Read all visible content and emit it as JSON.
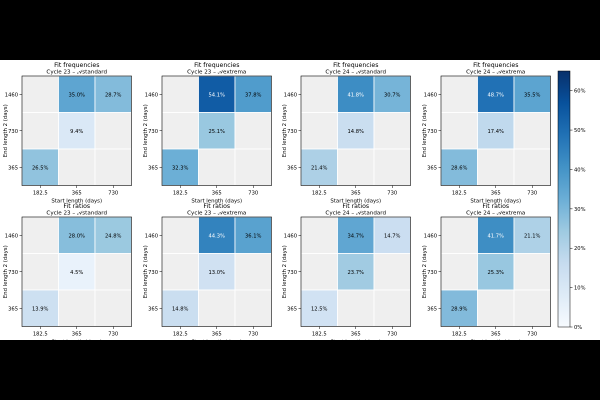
{
  "chart_data": {
    "type": "heatmap",
    "x_categories": [
      "182.5",
      "365",
      "730"
    ],
    "y_categories": [
      "1460",
      "730",
      "365"
    ],
    "xlabel": "Start length (days)",
    "ylabel": "End length 2 (days)",
    "empty_color": "#efefef",
    "colormap": [
      "#f7fbff",
      "#deebf7",
      "#c6dbef",
      "#9ecae1",
      "#6baed6",
      "#4292c6",
      "#2171b5",
      "#08519c",
      "#08306b"
    ],
    "colorbar": {
      "min": 0,
      "max": 65,
      "ticks": [
        "0%",
        "10%",
        "20%",
        "30%",
        "40%",
        "50%",
        "60%"
      ]
    },
    "panels": [
      {
        "title": "Fit frequencies",
        "subtitle": "Cycle 23 – 𝒜standard",
        "cells": [
          [
            null,
            35.0,
            28.7
          ],
          [
            null,
            9.4,
            null
          ],
          [
            26.5,
            null,
            null
          ]
        ]
      },
      {
        "title": "Fit frequencies",
        "subtitle": "Cycle 23 – 𝒜extrema",
        "cells": [
          [
            null,
            54.1,
            37.8
          ],
          [
            null,
            25.1,
            null
          ],
          [
            32.3,
            null,
            null
          ]
        ]
      },
      {
        "title": "Fit frequencies",
        "subtitle": "Cycle 24 – 𝒜standard",
        "cells": [
          [
            null,
            41.8,
            30.7
          ],
          [
            null,
            14.8,
            null
          ],
          [
            21.4,
            null,
            null
          ]
        ]
      },
      {
        "title": "Fit frequencies",
        "subtitle": "Cycle 24 – 𝒜extrema",
        "cells": [
          [
            null,
            48.7,
            35.5
          ],
          [
            null,
            17.4,
            null
          ],
          [
            28.6,
            null,
            null
          ]
        ]
      },
      {
        "title": "Fit ratios",
        "subtitle": "Cycle 23 – 𝒜standard",
        "cells": [
          [
            null,
            28.0,
            24.8
          ],
          [
            null,
            4.5,
            null
          ],
          [
            13.9,
            null,
            null
          ]
        ]
      },
      {
        "title": "Fit ratios",
        "subtitle": "Cycle 23 – 𝒜extrema",
        "cells": [
          [
            null,
            44.3,
            36.1
          ],
          [
            null,
            13.0,
            null
          ],
          [
            14.8,
            null,
            null
          ]
        ]
      },
      {
        "title": "Fit ratios",
        "subtitle": "Cycle 24 – 𝒜standard",
        "cells": [
          [
            null,
            34.7,
            14.7
          ],
          [
            null,
            23.7,
            null
          ],
          [
            12.5,
            null,
            null
          ]
        ]
      },
      {
        "title": "Fit ratios",
        "subtitle": "Cycle 24 – 𝒜extrema",
        "cells": [
          [
            null,
            41.7,
            21.1
          ],
          [
            null,
            25.3,
            null
          ],
          [
            28.9,
            null,
            null
          ]
        ]
      }
    ]
  }
}
